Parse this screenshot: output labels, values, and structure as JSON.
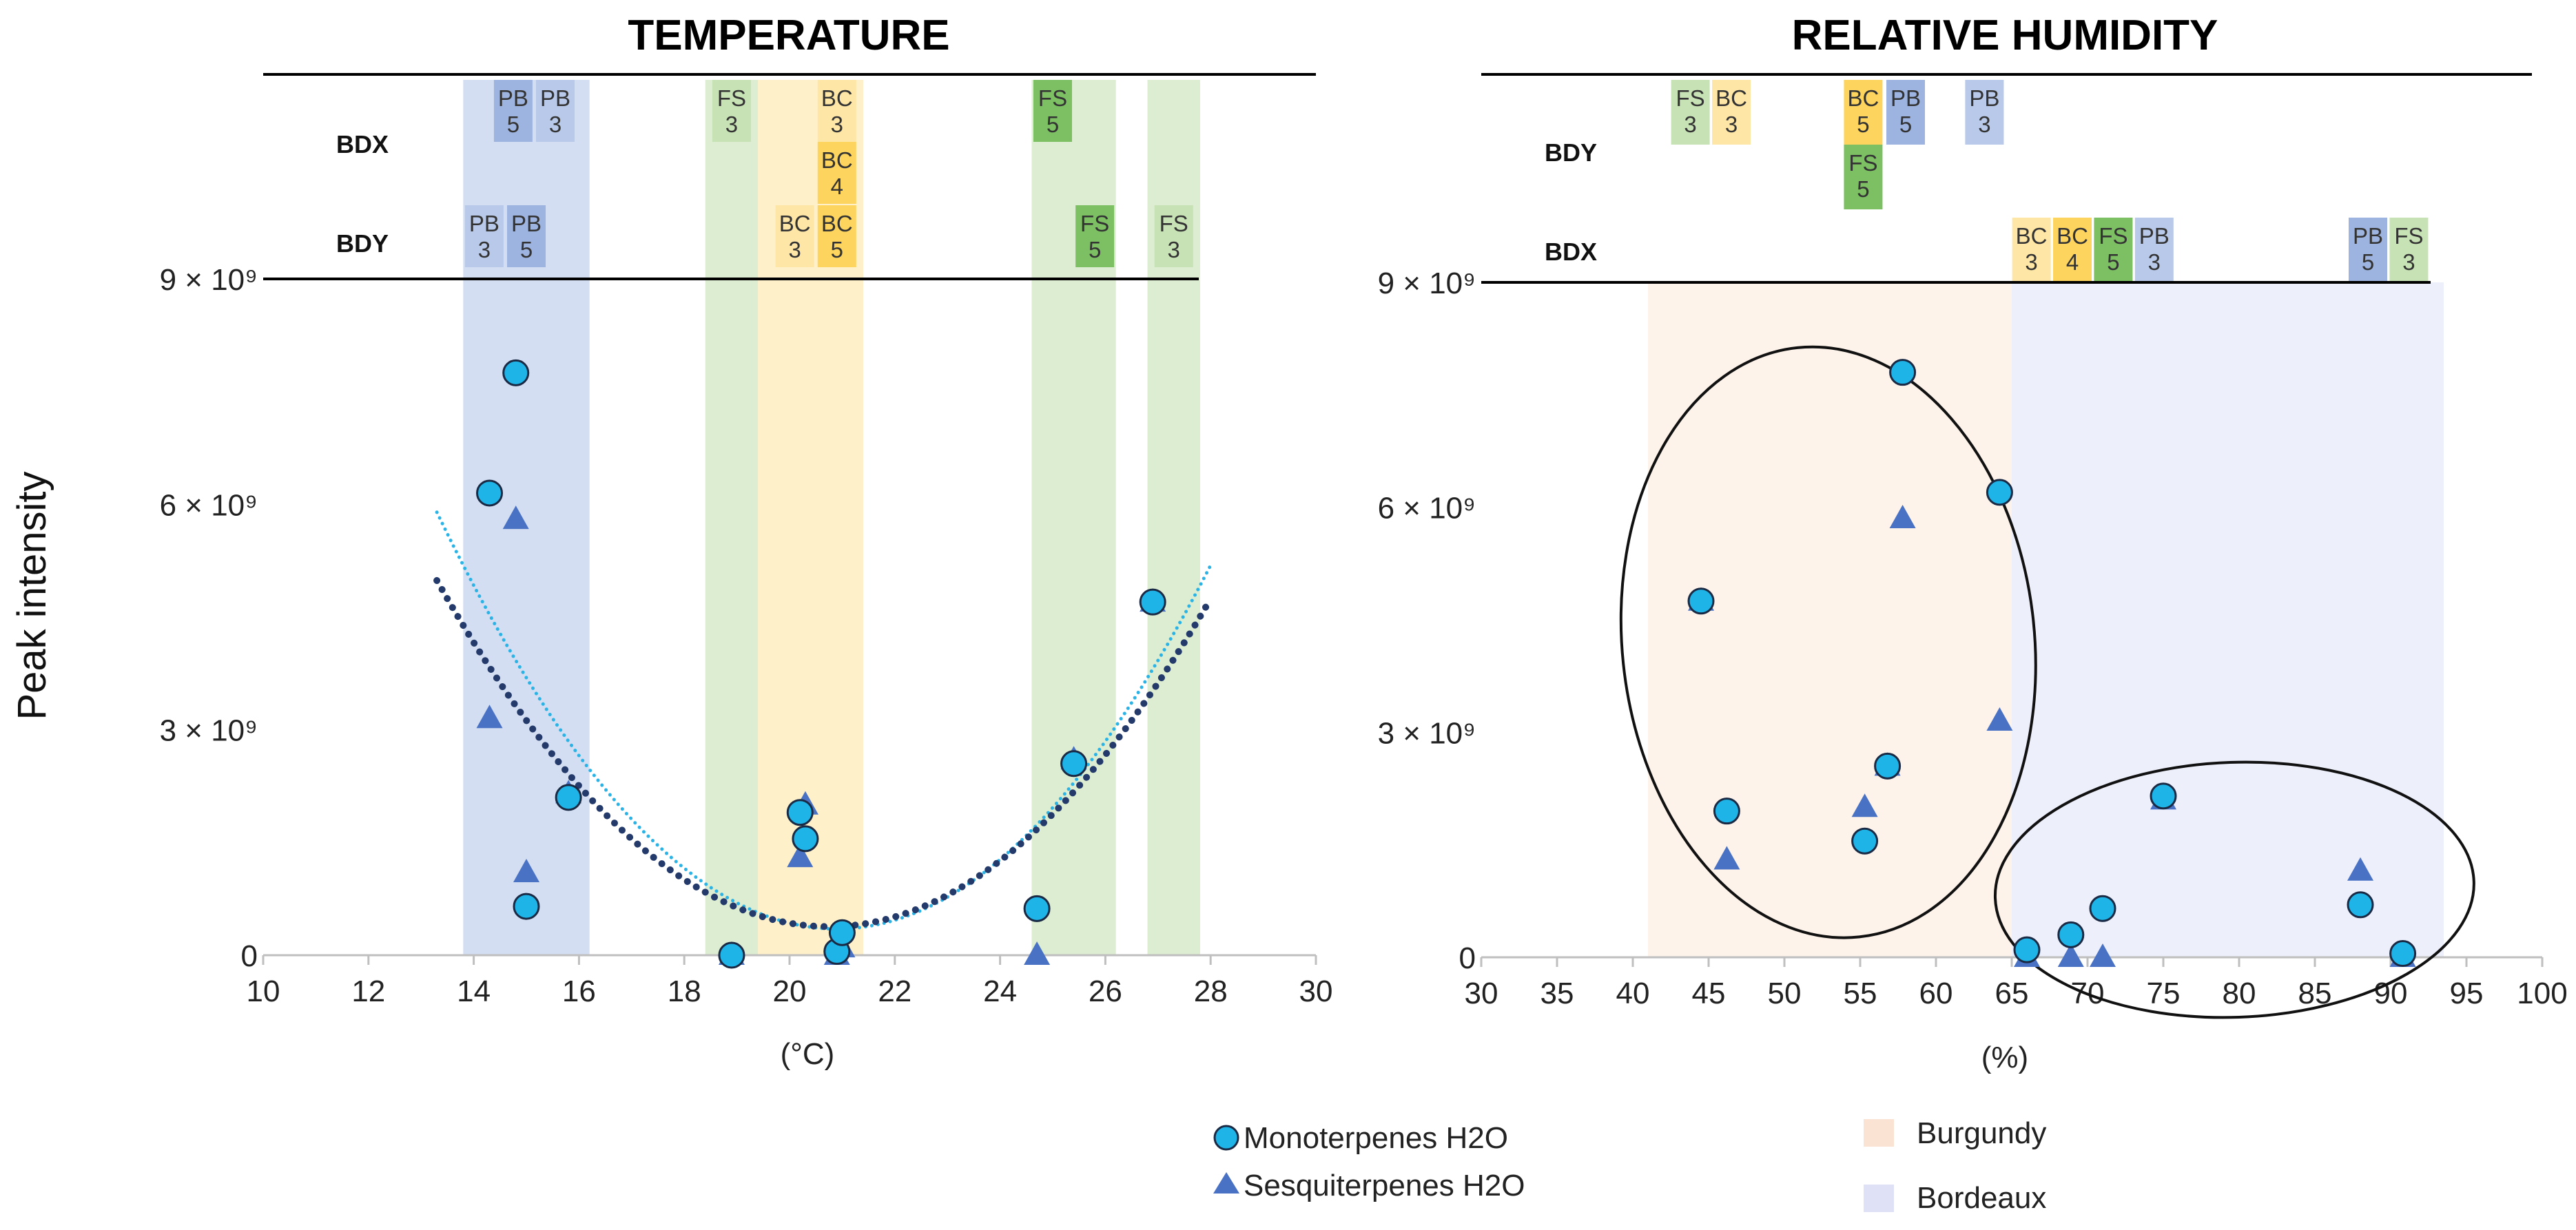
{
  "figure": {
    "y_axis_label": "Peak intensity"
  },
  "legend": {
    "monoterpenes": "Monoterpenes H2O",
    "sesquiterpenes": "Sesquiterpenes H2O",
    "burgundy": "Burgundy",
    "bordeaux": "Bordeaux"
  },
  "colors": {
    "mono_fill": "#1fb4e8",
    "mono_stroke": "#1a2a44",
    "sesq": "#4a72c4",
    "fit_mono": "#2bb3e6",
    "fit_sesq": "#233a6a",
    "PB": "#b8c9ea",
    "BC": "#fde6a6",
    "FS": "#c7e2b4",
    "PB_dark": "#9db4e0",
    "BC_dark": "#fcd45e",
    "FS_dark": "#7cc063",
    "burgundy_zone": "#fdf3ea",
    "bordeaux_zone": "#edeffb"
  },
  "chart_data": [
    {
      "type": "scatter",
      "title": "TEMPERATURE",
      "xlabel": "(°C)",
      "ylabel": "Peak intensity",
      "xlim": [
        10,
        30
      ],
      "ylim": [
        0,
        9000000000
      ],
      "x_ticks": [
        "10",
        "12",
        "14",
        "16",
        "18",
        "20",
        "22",
        "24",
        "26",
        "28",
        "30"
      ],
      "y_ticks": [
        {
          "value": 0,
          "label": "0"
        },
        {
          "value": 3000000000,
          "label": "3 × 10⁹"
        },
        {
          "value": 6000000000,
          "label": "6 × 10⁹"
        },
        {
          "value": 9000000000,
          "label": "9 × 10⁹"
        }
      ],
      "bands": [
        {
          "region": "PB",
          "x0": 13.8,
          "x1": 16.2
        },
        {
          "region": "FS",
          "x0": 18.4,
          "x1": 19.4
        },
        {
          "region": "BC",
          "x0": 19.4,
          "x1": 21.4
        },
        {
          "region": "FS",
          "x0": 24.6,
          "x1": 26.2
        },
        {
          "region": "FS",
          "x0": 26.8,
          "x1": 27.8
        }
      ],
      "header_rows": [
        {
          "label": "BDX",
          "cells": [
            {
              "x": 14.75,
              "line1": "PB",
              "line2": "5",
              "color": "PB_dark"
            },
            {
              "x": 15.55,
              "line1": "PB",
              "line2": "3",
              "color": "PB"
            },
            {
              "x": 18.9,
              "line1": "FS",
              "line2": "3",
              "color": "FS"
            },
            {
              "x": 20.9,
              "line1": "BC",
              "line2": "3",
              "color": "BC"
            },
            {
              "x": 20.9,
              "line1": "BC",
              "line2": "4",
              "color": "BC_dark",
              "stack": 1
            },
            {
              "x": 25.0,
              "line1": "FS",
              "line2": "5",
              "color": "FS_dark"
            }
          ]
        },
        {
          "label": "BDY",
          "cells": [
            {
              "x": 14.2,
              "line1": "PB",
              "line2": "3",
              "color": "PB"
            },
            {
              "x": 15.0,
              "line1": "PB",
              "line2": "5",
              "color": "PB_dark"
            },
            {
              "x": 20.1,
              "line1": "BC",
              "line2": "3",
              "color": "BC"
            },
            {
              "x": 20.9,
              "line1": "BC",
              "line2": "5",
              "color": "BC_dark"
            },
            {
              "x": 25.8,
              "line1": "FS",
              "line2": "5",
              "color": "FS_dark"
            },
            {
              "x": 27.3,
              "line1": "FS",
              "line2": "3",
              "color": "FS"
            }
          ]
        }
      ],
      "series": [
        {
          "name": "Monoterpenes H2O",
          "marker": "circle",
          "points": [
            [
              14.3,
              6150000000
            ],
            [
              14.8,
              7750000000
            ],
            [
              15.0,
              650000000
            ],
            [
              15.8,
              2100000000
            ],
            [
              18.9,
              0
            ],
            [
              20.2,
              1900000000
            ],
            [
              20.3,
              1550000000
            ],
            [
              20.9,
              50000000
            ],
            [
              21.0,
              300000000
            ],
            [
              24.7,
              620000000
            ],
            [
              25.4,
              2550000000
            ],
            [
              26.9,
              4700000000
            ]
          ]
        },
        {
          "name": "Sesquiterpenes H2O",
          "marker": "triangle",
          "points": [
            [
              14.3,
              3150000000
            ],
            [
              14.8,
              5800000000
            ],
            [
              15.0,
              1100000000
            ],
            [
              15.8,
              2150000000
            ],
            [
              18.9,
              0
            ],
            [
              20.2,
              1300000000
            ],
            [
              20.3,
              2000000000
            ],
            [
              20.9,
              0
            ],
            [
              21.0,
              100000000
            ],
            [
              24.7,
              0
            ],
            [
              25.4,
              2600000000
            ],
            [
              26.9,
              4700000000
            ]
          ]
        }
      ],
      "trendlines": [
        {
          "series": "Monoterpenes H2O",
          "style": "dotted-thin",
          "vertex_x": 20.9,
          "vertex_y": 350000000,
          "a": 96000000,
          "x_range": [
            13.3,
            28.0
          ]
        },
        {
          "series": "Sesquiterpenes H2O",
          "style": "dotted-bold",
          "vertex_x": 20.75,
          "vertex_y": 380000000,
          "a": 83000000,
          "x_range": [
            13.3,
            28.0
          ]
        }
      ]
    },
    {
      "type": "scatter",
      "title": "RELATIVE HUMIDITY",
      "xlabel": "(%)",
      "ylabel": "Peak intensity",
      "xlim": [
        30,
        100
      ],
      "ylim": [
        0,
        9000000000
      ],
      "x_ticks": [
        "30",
        "35",
        "40",
        "45",
        "50",
        "55",
        "60",
        "65",
        "70",
        "75",
        "80",
        "85",
        "90",
        "95",
        "100"
      ],
      "y_ticks": [
        {
          "value": 0,
          "label": "0"
        },
        {
          "value": 3000000000,
          "label": "3 × 10⁹"
        },
        {
          "value": 6000000000,
          "label": "6 × 10⁹"
        },
        {
          "value": 9000000000,
          "label": "9 × 10⁹"
        }
      ],
      "zones": [
        {
          "region": "Burgundy",
          "x0": 41,
          "x1": 65
        },
        {
          "region": "Bordeaux",
          "x0": 65,
          "x1": 93.5
        }
      ],
      "header_rows": [
        {
          "label": "BDY",
          "cells": [
            {
              "x": 43.8,
              "line1": "FS",
              "line2": "3",
              "color": "FS"
            },
            {
              "x": 46.5,
              "line1": "BC",
              "line2": "3",
              "color": "BC"
            },
            {
              "x": 55.2,
              "line1": "BC",
              "line2": "5",
              "color": "BC_dark"
            },
            {
              "x": 55.2,
              "line1": "FS",
              "line2": "5",
              "color": "FS_dark",
              "stack": 1
            },
            {
              "x": 58.0,
              "line1": "PB",
              "line2": "5",
              "color": "PB_dark"
            },
            {
              "x": 63.2,
              "line1": "PB",
              "line2": "3",
              "color": "PB"
            }
          ]
        },
        {
          "label": "BDX",
          "cells": [
            {
              "x": 66.3,
              "line1": "BC",
              "line2": "3",
              "color": "BC"
            },
            {
              "x": 69.0,
              "line1": "BC",
              "line2": "4",
              "color": "BC_dark"
            },
            {
              "x": 71.7,
              "line1": "FS",
              "line2": "5",
              "color": "FS_dark"
            },
            {
              "x": 74.4,
              "line1": "PB",
              "line2": "3",
              "color": "PB"
            },
            {
              "x": 88.5,
              "line1": "PB",
              "line2": "5",
              "color": "PB_dark"
            },
            {
              "x": 91.2,
              "line1": "FS",
              "line2": "3",
              "color": "FS"
            }
          ]
        }
      ],
      "series": [
        {
          "name": "Monoterpenes H2O",
          "marker": "circle",
          "points": [
            [
              44.5,
              4750000000
            ],
            [
              46.2,
              1950000000
            ],
            [
              55.3,
              1550000000
            ],
            [
              56.8,
              2550000000
            ],
            [
              57.8,
              7800000000
            ],
            [
              64.2,
              6200000000
            ],
            [
              66.0,
              100000000
            ],
            [
              68.9,
              300000000
            ],
            [
              71.0,
              650000000
            ],
            [
              75.0,
              2150000000
            ],
            [
              88.0,
              700000000
            ],
            [
              90.8,
              50000000
            ]
          ]
        },
        {
          "name": "Sesquiterpenes H2O",
          "marker": "triangle",
          "points": [
            [
              44.5,
              4750000000
            ],
            [
              46.2,
              1300000000
            ],
            [
              55.3,
              2000000000
            ],
            [
              56.8,
              2550000000
            ],
            [
              57.8,
              5850000000
            ],
            [
              64.2,
              3150000000
            ],
            [
              66.0,
              0
            ],
            [
              68.9,
              0
            ],
            [
              71.0,
              0
            ],
            [
              75.0,
              2100000000
            ],
            [
              88.0,
              1150000000
            ],
            [
              90.8,
              0
            ]
          ]
        }
      ],
      "ellipses": [
        {
          "cx": 52.9,
          "cy": 4200000000,
          "rx": 13.6,
          "ry": 3950000000,
          "rotate": -6
        },
        {
          "cx": 79.7,
          "cy": 900000000,
          "rx": 15.8,
          "ry": 1700000000,
          "rotate": -2
        }
      ]
    }
  ]
}
